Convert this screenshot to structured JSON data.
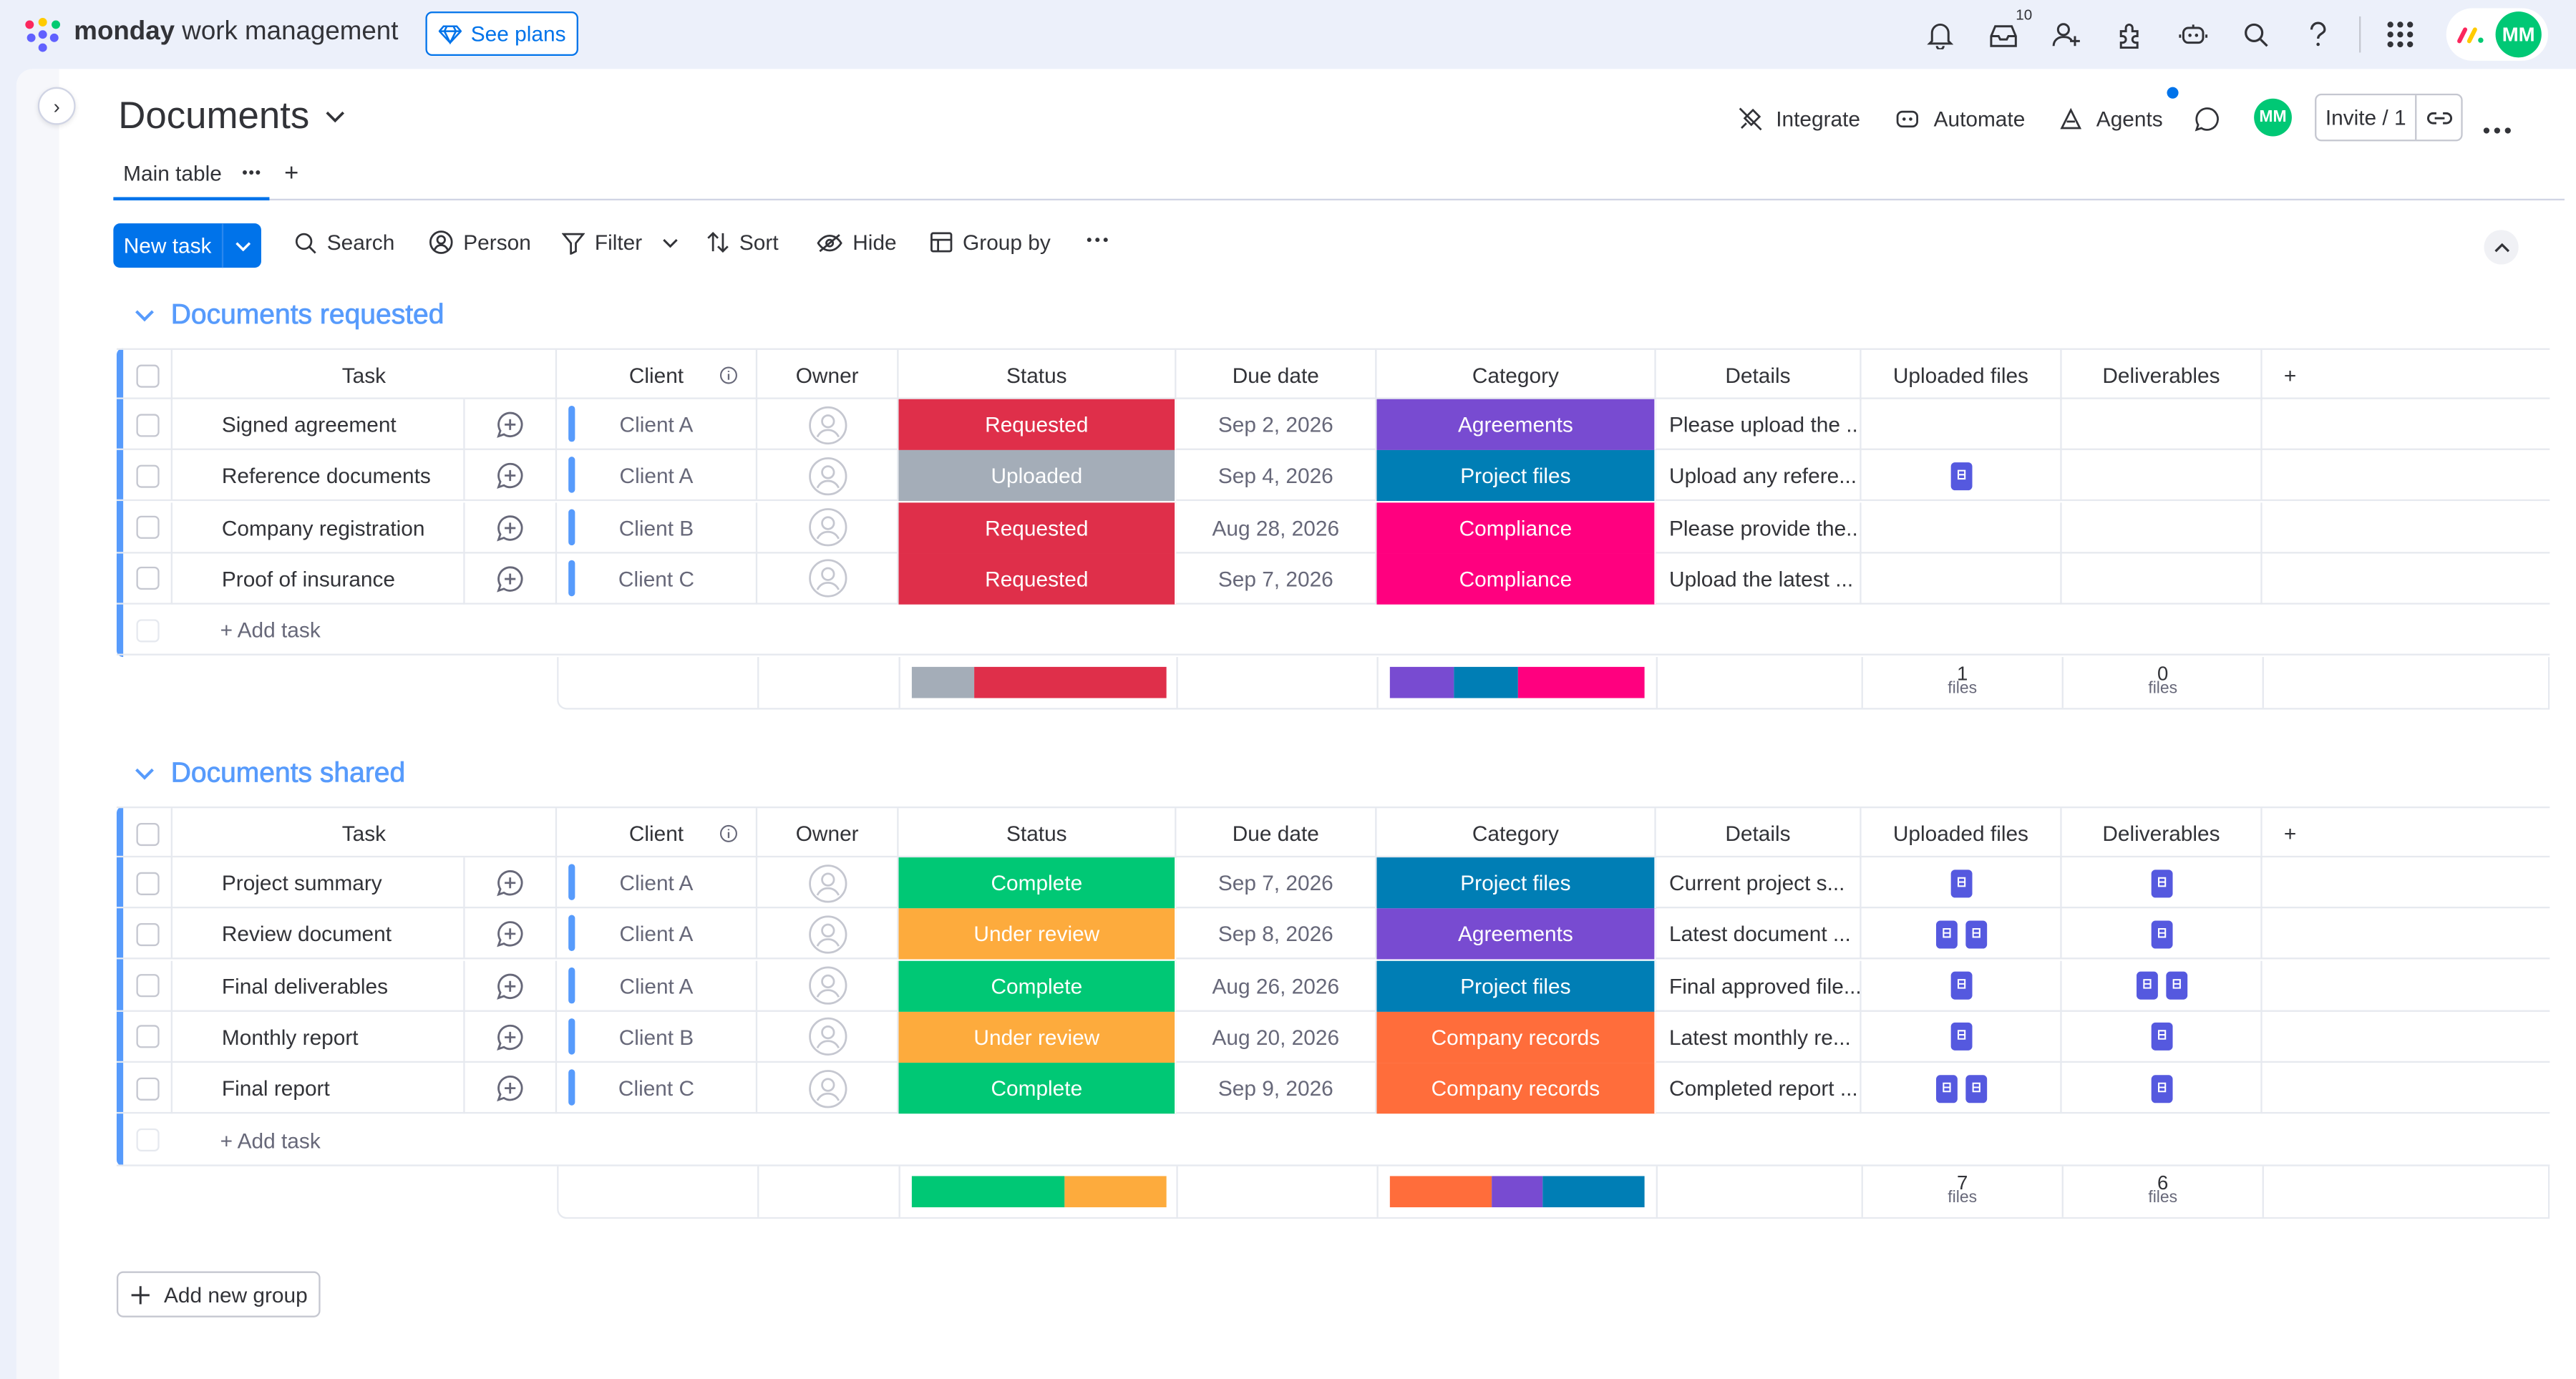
{
  "app": {
    "brand_bold": "monday",
    "brand_rest": "work management",
    "see_plans": "See plans",
    "notification_badge": "10"
  },
  "header": {
    "board_title": "Documents",
    "integrate": "Integrate",
    "automate": "Automate",
    "agents": "Agents",
    "avatar_initials": "MM",
    "invite": "Invite / 1"
  },
  "tabs": {
    "main": "Main table"
  },
  "toolbar": {
    "new_task": "New task",
    "search": "Search",
    "person": "Person",
    "filter": "Filter",
    "sort": "Sort",
    "hide": "Hide",
    "group_by": "Group by"
  },
  "columns": [
    "Task",
    "Client",
    "Owner",
    "Status",
    "Due date",
    "Category",
    "Details",
    "Uploaded files",
    "Deliverables"
  ],
  "colors": {
    "accent": "#0073ea",
    "group": "#579bfc",
    "Requested": "#df2f4a",
    "Uploaded": "#a4adb8",
    "Complete": "#00c875",
    "Under review": "#fdab3d",
    "Agreements": "#784bd1",
    "Project files": "#007eb5",
    "Compliance": "#ff007f",
    "Company records": "#ff6d3b"
  },
  "groups": [
    {
      "title": "Documents requested",
      "add_task": "+ Add task",
      "rows": [
        {
          "task": "Signed agreement",
          "client": "Client A",
          "status": "Requested",
          "due": "Sep 2, 2026",
          "category": "Agreements",
          "details": "Please upload the ...",
          "uploaded": 0,
          "deliverables": 0
        },
        {
          "task": "Reference documents",
          "client": "Client A",
          "status": "Uploaded",
          "due": "Sep 4, 2026",
          "category": "Project files",
          "details": "Upload any refere...",
          "uploaded": 1,
          "deliverables": 0
        },
        {
          "task": "Company registration",
          "client": "Client B",
          "status": "Requested",
          "due": "Aug 28, 2026",
          "category": "Compliance",
          "details": "Please provide the...",
          "uploaded": 0,
          "deliverables": 0
        },
        {
          "task": "Proof of insurance",
          "client": "Client C",
          "status": "Requested",
          "due": "Sep 7, 2026",
          "category": "Compliance",
          "details": "Upload the latest ...",
          "uploaded": 0,
          "deliverables": 0
        }
      ],
      "summary": {
        "status_bar": [
          {
            "label": "Uploaded",
            "fraction": 0.25
          },
          {
            "label": "Requested",
            "fraction": 0.75
          }
        ],
        "category_bar": [
          {
            "label": "Agreements",
            "fraction": 0.25
          },
          {
            "label": "Project files",
            "fraction": 0.25
          },
          {
            "label": "Compliance",
            "fraction": 0.5
          }
        ],
        "uploaded_count": "1",
        "deliverables_count": "0",
        "files_unit": "files"
      }
    },
    {
      "title": "Documents shared",
      "add_task": "+ Add task",
      "rows": [
        {
          "task": "Project summary",
          "client": "Client A",
          "status": "Complete",
          "due": "Sep 7, 2026",
          "category": "Project files",
          "details": "Current project s...",
          "uploaded": 1,
          "deliverables": 1
        },
        {
          "task": "Review document",
          "client": "Client A",
          "status": "Under review",
          "due": "Sep 8, 2026",
          "category": "Agreements",
          "details": "Latest document ...",
          "uploaded": 2,
          "deliverables": 1
        },
        {
          "task": "Final deliverables",
          "client": "Client A",
          "status": "Complete",
          "due": "Aug 26, 2026",
          "category": "Project files",
          "details": "Final approved file...",
          "uploaded": 1,
          "deliverables": 2
        },
        {
          "task": "Monthly report",
          "client": "Client B",
          "status": "Under review",
          "due": "Aug 20, 2026",
          "category": "Company records",
          "details": "Latest monthly re...",
          "uploaded": 1,
          "deliverables": 1
        },
        {
          "task": "Final report",
          "client": "Client C",
          "status": "Complete",
          "due": "Sep 9, 2026",
          "category": "Company records",
          "details": "Completed report ...",
          "uploaded": 2,
          "deliverables": 1
        }
      ],
      "summary": {
        "status_bar": [
          {
            "label": "Complete",
            "fraction": 0.6
          },
          {
            "label": "Under review",
            "fraction": 0.4
          }
        ],
        "category_bar": [
          {
            "label": "Company records",
            "fraction": 0.4
          },
          {
            "label": "Agreements",
            "fraction": 0.2
          },
          {
            "label": "Project files",
            "fraction": 0.4
          }
        ],
        "uploaded_count": "7",
        "deliverables_count": "6",
        "files_unit": "files"
      }
    }
  ],
  "add_new_group": "Add new group"
}
